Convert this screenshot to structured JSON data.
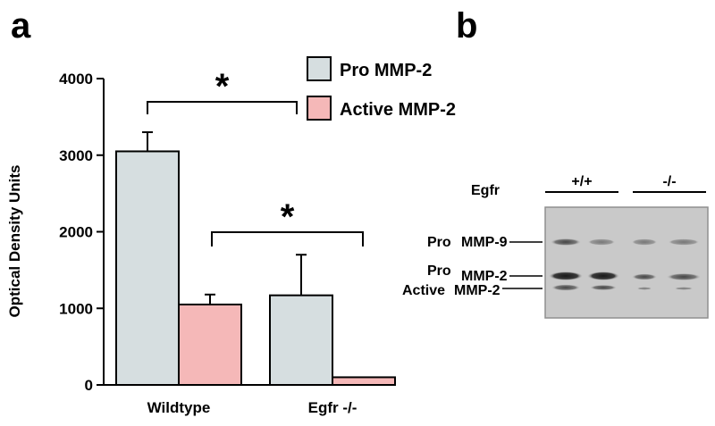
{
  "panels": {
    "a": "a",
    "b": "b"
  },
  "chart_data": {
    "type": "bar",
    "categories": [
      "Wildtype",
      "Egfr -/-"
    ],
    "series": [
      {
        "name": "Pro MMP-2",
        "values": [
          3050,
          1170
        ],
        "errors": [
          250,
          530
        ],
        "color": "#d6dee0"
      },
      {
        "name": "Active MMP-2",
        "values": [
          1050,
          100
        ],
        "errors": [
          130,
          0
        ],
        "color": "#f5b8b8"
      }
    ],
    "ylabel": "Optical Density Units",
    "ylim": [
      0,
      4000
    ],
    "yticks": [
      "0",
      "1000",
      "2000",
      "3000",
      "4000"
    ],
    "legend": "top-right",
    "annotations": [
      {
        "label": "*",
        "from": "Wildtype Pro MMP-2",
        "to": "Egfr -/- Pro MMP-2"
      },
      {
        "label": "*",
        "from": "Wildtype Active MMP-2",
        "to": "Egfr -/- Active MMP-2"
      }
    ]
  },
  "blot": {
    "row_header": "Egfr",
    "groups": [
      "+/+",
      "-/-"
    ],
    "band_labels": [
      {
        "prefix": "Pro",
        "name": "MMP-9"
      },
      {
        "prefix": "Pro",
        "name": "MMP-2"
      },
      {
        "prefix": "Active",
        "name": "MMP-2"
      }
    ]
  }
}
